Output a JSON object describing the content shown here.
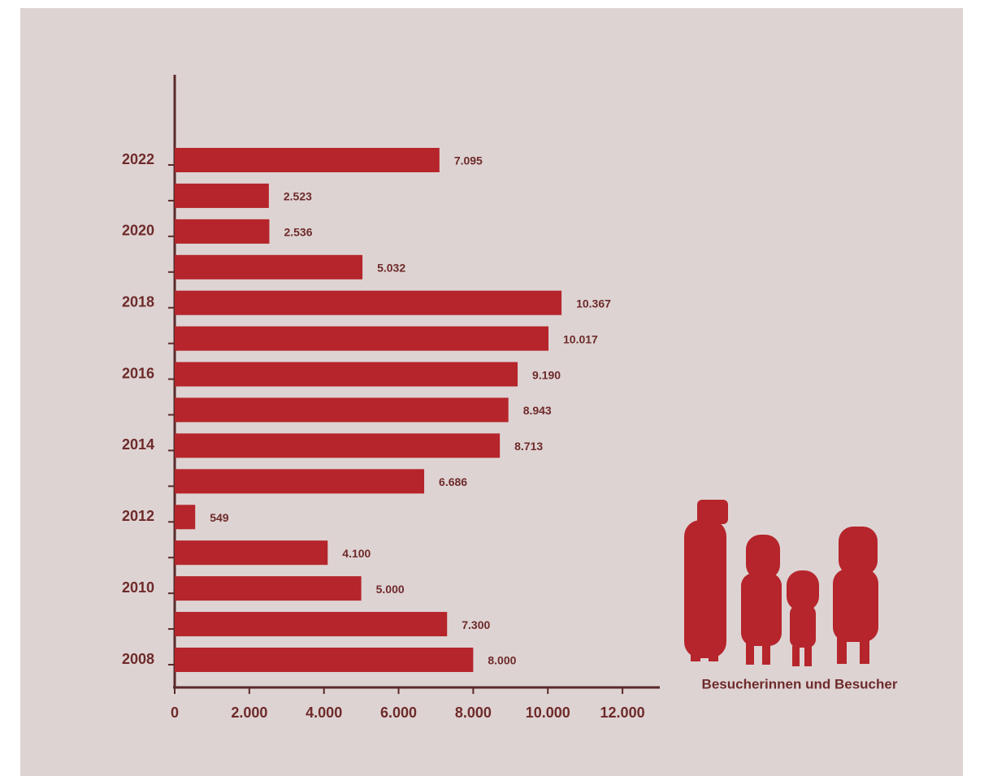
{
  "chart_data": {
    "type": "bar",
    "orientation": "horizontal",
    "categories": [
      "2008",
      null,
      "2010",
      null,
      "2012",
      null,
      "2014",
      null,
      "2016",
      null,
      "2018",
      null,
      "2020",
      null,
      "2022"
    ],
    "values": [
      8000,
      7300,
      5000,
      4100,
      549,
      6686,
      8713,
      8943,
      9190,
      10017,
      10367,
      5032,
      2536,
      2523,
      7095
    ],
    "value_labels": [
      "8.000",
      "7.300",
      "5.000",
      "4.100",
      "549",
      "6.686",
      "8.713",
      "8.943",
      "9.190",
      "10.017",
      "10.367",
      "5.032",
      "2.536",
      "2.523",
      "7.095"
    ],
    "color": "#b5252b",
    "xlim": [
      0,
      13000
    ],
    "xticks": [
      0,
      {
        "value": 2000,
        "label": "2.000"
      },
      {
        "value": 4000,
        "label": "4.000"
      },
      {
        "value": 6000,
        "label": "6.000"
      },
      {
        "value": 8000,
        "label": "8.000"
      },
      {
        "value": 10000,
        "label": "10.000"
      },
      {
        "value": 12000,
        "label": "12.000"
      }
    ],
    "annotation": "Besucherinnen und Besucher"
  }
}
